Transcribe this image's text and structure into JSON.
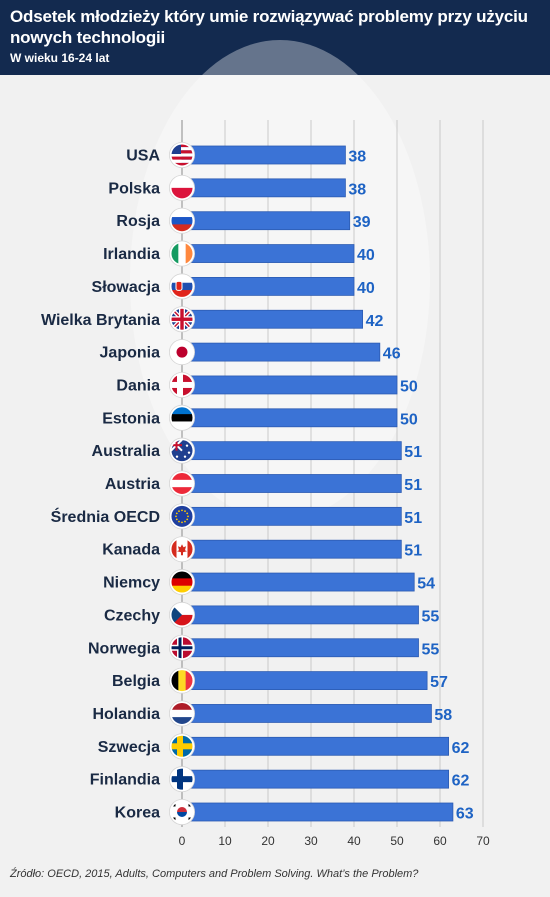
{
  "header": {
    "title": "Odsetek młodzieży który umie rozwiązywać problemy przy użyciu nowych technologii",
    "subtitle": "W wieku 16-24 lat"
  },
  "source": "Źródło: OECD, 2015, Adults, Computers and Problem Solving. What’s the Problem?",
  "colors": {
    "bar": "#3b73d6",
    "bar_edge": "#2c5bb2",
    "value_text": "#1e63c4",
    "header_bg": "#132a4f"
  },
  "chart_data": {
    "type": "bar",
    "orientation": "horizontal",
    "categories": [
      "USA",
      "Polska",
      "Rosja",
      "Irlandia",
      "Słowacja",
      "Wielka Brytania",
      "Japonia",
      "Dania",
      "Estonia",
      "Australia",
      "Austria",
      "Średnia OECD",
      "Kanada",
      "Niemcy",
      "Czechy",
      "Norwegia",
      "Belgia",
      "Holandia",
      "Szwecja",
      "Finlandia",
      "Korea"
    ],
    "values": [
      38,
      38,
      39,
      40,
      40,
      42,
      46,
      50,
      50,
      51,
      51,
      51,
      51,
      54,
      55,
      55,
      57,
      58,
      62,
      62,
      63
    ],
    "flag_icons": [
      "flag-usa-icon",
      "flag-poland-icon",
      "flag-russia-icon",
      "flag-ireland-icon",
      "flag-slovakia-icon",
      "flag-uk-icon",
      "flag-japan-icon",
      "flag-denmark-icon",
      "flag-estonia-icon",
      "flag-australia-icon",
      "flag-austria-icon",
      "flag-eu-icon",
      "flag-canada-icon",
      "flag-germany-icon",
      "flag-czechia-icon",
      "flag-norway-icon",
      "flag-belgium-icon",
      "flag-netherlands-icon",
      "flag-sweden-icon",
      "flag-finland-icon",
      "flag-korea-icon"
    ],
    "xlim": [
      0,
      70
    ],
    "xticks": [
      0,
      10,
      20,
      30,
      40,
      50,
      60,
      70
    ],
    "grid": true,
    "title": "Odsetek młodzieży który umie rozwiązywać problemy przy użyciu nowych technologii",
    "subtitle": "W wieku 16-24 lat"
  }
}
